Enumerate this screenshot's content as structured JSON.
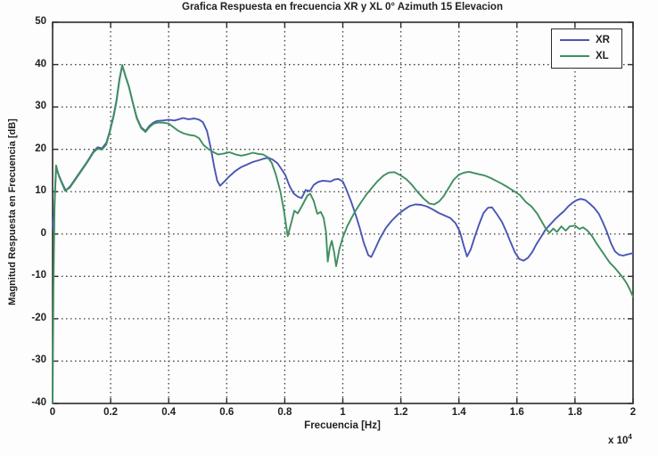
{
  "chart_data": {
    "type": "line",
    "title": "Grafica Respuesta en frecuencia XR y XL 0° Azimuth 15 Elevacion",
    "xlabel": "Frecuencia [Hz]",
    "ylabel": "Magnitud Respuesta en Frecuencia [dB]",
    "x_exponent": {
      "base": "x 10",
      "power": "4"
    },
    "xlim": [
      0,
      2
    ],
    "ylim": [
      -40,
      50
    ],
    "x_ticks": [
      0,
      0.2,
      0.4,
      0.6,
      0.8,
      1,
      1.2,
      1.4,
      1.6,
      1.8,
      2
    ],
    "x_tick_labels": [
      "0",
      "0.2",
      "0.4",
      "0.6",
      "0.8",
      "1",
      "1.2",
      "1.4",
      "1.6",
      "1.8",
      "2"
    ],
    "y_ticks": [
      50,
      40,
      30,
      20,
      10,
      0,
      -10,
      -20,
      -30,
      -40
    ],
    "y_tick_labels": [
      "50",
      "40",
      "30",
      "20",
      "10",
      "0",
      "-10",
      "-20",
      "-30",
      "-40"
    ],
    "grid": "dotted",
    "legend_position": "top-right",
    "colors": {
      "axis": "#2a2a2a",
      "grid": "#3a3a3a",
      "background": "#fdfdfd"
    },
    "series": [
      {
        "name": "XR",
        "color": "#4a56b4",
        "points": [
          [
            0,
            1.3
          ],
          [
            0.006,
            6
          ],
          [
            0.012,
            15.5
          ],
          [
            0.022,
            13.8
          ],
          [
            0.032,
            12.2
          ],
          [
            0.045,
            10.3
          ],
          [
            0.06,
            11.2
          ],
          [
            0.08,
            13.2
          ],
          [
            0.1,
            15.2
          ],
          [
            0.12,
            17.2
          ],
          [
            0.14,
            19.4
          ],
          [
            0.155,
            20.5
          ],
          [
            0.17,
            20.2
          ],
          [
            0.185,
            21.5
          ],
          [
            0.195,
            23.8
          ],
          [
            0.21,
            28
          ],
          [
            0.22,
            31.5
          ],
          [
            0.23,
            36.5
          ],
          [
            0.24,
            39.8
          ],
          [
            0.251,
            37.3
          ],
          [
            0.263,
            34.8
          ],
          [
            0.277,
            30.8
          ],
          [
            0.29,
            27.5
          ],
          [
            0.305,
            25.2
          ],
          [
            0.32,
            24.3
          ],
          [
            0.333,
            25.5
          ],
          [
            0.347,
            26.3
          ],
          [
            0.36,
            26.7
          ],
          [
            0.38,
            26.8
          ],
          [
            0.4,
            27
          ],
          [
            0.42,
            26.8
          ],
          [
            0.435,
            27.1
          ],
          [
            0.45,
            27.4
          ],
          [
            0.468,
            27.1
          ],
          [
            0.489,
            27.3
          ],
          [
            0.505,
            27
          ],
          [
            0.518,
            26.4
          ],
          [
            0.532,
            24.3
          ],
          [
            0.545,
            20.3
          ],
          [
            0.557,
            15.8
          ],
          [
            0.567,
            12.6
          ],
          [
            0.577,
            11.4
          ],
          [
            0.592,
            12.4
          ],
          [
            0.61,
            13.7
          ],
          [
            0.63,
            14.9
          ],
          [
            0.65,
            15.8
          ],
          [
            0.67,
            16.4
          ],
          [
            0.69,
            17
          ],
          [
            0.71,
            17.4
          ],
          [
            0.728,
            17.8
          ],
          [
            0.745,
            18
          ],
          [
            0.76,
            17.5
          ],
          [
            0.775,
            16.7
          ],
          [
            0.79,
            15.2
          ],
          [
            0.802,
            13.9
          ],
          [
            0.816,
            11.4
          ],
          [
            0.83,
            9.6
          ],
          [
            0.845,
            8.8
          ],
          [
            0.858,
            8.5
          ],
          [
            0.872,
            10.4
          ],
          [
            0.886,
            10.1
          ],
          [
            0.9,
            11.6
          ],
          [
            0.915,
            12.3
          ],
          [
            0.93,
            12.6
          ],
          [
            0.945,
            12.5
          ],
          [
            0.958,
            12.4
          ],
          [
            0.972,
            12.9
          ],
          [
            0.985,
            13
          ],
          [
            1,
            12.4
          ],
          [
            1.013,
            10.4
          ],
          [
            1.028,
            7.8
          ],
          [
            1.043,
            4.8
          ],
          [
            1.058,
            1.5
          ],
          [
            1.072,
            -2
          ],
          [
            1.088,
            -5
          ],
          [
            1.098,
            -5.4
          ],
          [
            1.112,
            -3.4
          ],
          [
            1.128,
            -1
          ],
          [
            1.148,
            1.4
          ],
          [
            1.168,
            3.1
          ],
          [
            1.19,
            4.6
          ],
          [
            1.21,
            5.7
          ],
          [
            1.23,
            6.6
          ],
          [
            1.25,
            7
          ],
          [
            1.27,
            6.9
          ],
          [
            1.29,
            6.5
          ],
          [
            1.31,
            5.8
          ],
          [
            1.33,
            5
          ],
          [
            1.35,
            4.4
          ],
          [
            1.37,
            3.8
          ],
          [
            1.388,
            2.6
          ],
          [
            1.403,
            0.6
          ],
          [
            1.417,
            -2.8
          ],
          [
            1.428,
            -5.3
          ],
          [
            1.441,
            -3.6
          ],
          [
            1.455,
            -0.6
          ],
          [
            1.47,
            2.4
          ],
          [
            1.485,
            5
          ],
          [
            1.5,
            6.2
          ],
          [
            1.514,
            6.3
          ],
          [
            1.53,
            4.8
          ],
          [
            1.548,
            2.9
          ],
          [
            1.563,
            0.6
          ],
          [
            1.578,
            -1.9
          ],
          [
            1.593,
            -4.3
          ],
          [
            1.608,
            -5.9
          ],
          [
            1.623,
            -6.3
          ],
          [
            1.638,
            -5.6
          ],
          [
            1.653,
            -4.2
          ],
          [
            1.668,
            -2.3
          ],
          [
            1.683,
            -0.7
          ],
          [
            1.698,
            1
          ],
          [
            1.714,
            2.2
          ],
          [
            1.73,
            3.4
          ],
          [
            1.745,
            4.4
          ],
          [
            1.762,
            5.4
          ],
          [
            1.778,
            6.6
          ],
          [
            1.792,
            7.4
          ],
          [
            1.806,
            8
          ],
          [
            1.82,
            8.3
          ],
          [
            1.836,
            8
          ],
          [
            1.85,
            7.2
          ],
          [
            1.866,
            6.2
          ],
          [
            1.882,
            4.8
          ],
          [
            1.896,
            2.8
          ],
          [
            1.91,
            0.5
          ],
          [
            1.924,
            -2.2
          ],
          [
            1.938,
            -4.1
          ],
          [
            1.952,
            -4.9
          ],
          [
            1.966,
            -5.1
          ],
          [
            1.982,
            -4.8
          ],
          [
            2,
            -4.5
          ]
        ]
      },
      {
        "name": "XL",
        "color": "#3f8f5f",
        "points": [
          [
            0,
            -40
          ],
          [
            0.003,
            -12
          ],
          [
            0.007,
            8
          ],
          [
            0.012,
            16.2
          ],
          [
            0.022,
            13.6
          ],
          [
            0.032,
            12
          ],
          [
            0.043,
            10.2
          ],
          [
            0.06,
            11
          ],
          [
            0.08,
            13
          ],
          [
            0.1,
            15
          ],
          [
            0.12,
            17
          ],
          [
            0.14,
            19.2
          ],
          [
            0.155,
            20.2
          ],
          [
            0.17,
            19.9
          ],
          [
            0.185,
            21.1
          ],
          [
            0.195,
            23.6
          ],
          [
            0.21,
            27.7
          ],
          [
            0.22,
            31.2
          ],
          [
            0.23,
            36.2
          ],
          [
            0.24,
            39.9
          ],
          [
            0.251,
            37.3
          ],
          [
            0.263,
            34.8
          ],
          [
            0.277,
            30.8
          ],
          [
            0.29,
            27.3
          ],
          [
            0.305,
            25
          ],
          [
            0.32,
            24.1
          ],
          [
            0.333,
            25.2
          ],
          [
            0.347,
            26
          ],
          [
            0.36,
            26.3
          ],
          [
            0.38,
            26.3
          ],
          [
            0.4,
            26.1
          ],
          [
            0.415,
            25.3
          ],
          [
            0.43,
            24.5
          ],
          [
            0.45,
            23.8
          ],
          [
            0.47,
            23.4
          ],
          [
            0.49,
            23.2
          ],
          [
            0.505,
            22.6
          ],
          [
            0.52,
            21
          ],
          [
            0.54,
            19.9
          ],
          [
            0.555,
            19.3
          ],
          [
            0.57,
            18.8
          ],
          [
            0.59,
            19
          ],
          [
            0.61,
            19.3
          ],
          [
            0.63,
            18.8
          ],
          [
            0.65,
            18.5
          ],
          [
            0.67,
            18.8
          ],
          [
            0.69,
            19.2
          ],
          [
            0.71,
            18.9
          ],
          [
            0.725,
            18.8
          ],
          [
            0.74,
            18.2
          ],
          [
            0.755,
            16.8
          ],
          [
            0.77,
            13.9
          ],
          [
            0.785,
            10
          ],
          [
            0.798,
            5.2
          ],
          [
            0.81,
            -0.5
          ],
          [
            0.822,
            2.6
          ],
          [
            0.833,
            5.5
          ],
          [
            0.845,
            4.9
          ],
          [
            0.862,
            7
          ],
          [
            0.878,
            9.1
          ],
          [
            0.888,
            9.5
          ],
          [
            0.9,
            7.8
          ],
          [
            0.912,
            4.8
          ],
          [
            0.924,
            5.2
          ],
          [
            0.934,
            3.8
          ],
          [
            0.942,
            0.5
          ],
          [
            0.948,
            -6.5
          ],
          [
            0.955,
            -3.2
          ],
          [
            0.962,
            -1.6
          ],
          [
            0.97,
            -4.2
          ],
          [
            0.977,
            -7.6
          ],
          [
            0.988,
            -3.6
          ],
          [
            1,
            -0.8
          ],
          [
            1.015,
            1.8
          ],
          [
            1.03,
            3.8
          ],
          [
            1.045,
            5.6
          ],
          [
            1.06,
            7.2
          ],
          [
            1.08,
            9.2
          ],
          [
            1.1,
            10.9
          ],
          [
            1.12,
            12.5
          ],
          [
            1.14,
            13.8
          ],
          [
            1.158,
            14.5
          ],
          [
            1.178,
            14.6
          ],
          [
            1.198,
            13.9
          ],
          [
            1.218,
            13
          ],
          [
            1.238,
            11.6
          ],
          [
            1.258,
            9.9
          ],
          [
            1.278,
            8.4
          ],
          [
            1.298,
            7.2
          ],
          [
            1.315,
            7
          ],
          [
            1.332,
            7.7
          ],
          [
            1.348,
            9
          ],
          [
            1.365,
            10.9
          ],
          [
            1.382,
            12.8
          ],
          [
            1.4,
            14
          ],
          [
            1.418,
            14.5
          ],
          [
            1.435,
            14.7
          ],
          [
            1.452,
            14.4
          ],
          [
            1.47,
            14.1
          ],
          [
            1.49,
            13.8
          ],
          [
            1.51,
            13.2
          ],
          [
            1.53,
            12.5
          ],
          [
            1.55,
            11.8
          ],
          [
            1.57,
            11
          ],
          [
            1.59,
            10.1
          ],
          [
            1.61,
            9.2
          ],
          [
            1.63,
            7.6
          ],
          [
            1.65,
            6.5
          ],
          [
            1.67,
            4.8
          ],
          [
            1.685,
            3
          ],
          [
            1.7,
            1.2
          ],
          [
            1.712,
            0.3
          ],
          [
            1.725,
            1.3
          ],
          [
            1.738,
            0.5
          ],
          [
            1.753,
            1.8
          ],
          [
            1.768,
            0.8
          ],
          [
            1.782,
            1.8
          ],
          [
            1.8,
            2
          ],
          [
            1.815,
            1.2
          ],
          [
            1.828,
            1.6
          ],
          [
            1.843,
            0.8
          ],
          [
            1.858,
            -0.4
          ],
          [
            1.874,
            -2.2
          ],
          [
            1.89,
            -3.8
          ],
          [
            1.905,
            -5.3
          ],
          [
            1.92,
            -6.8
          ],
          [
            1.935,
            -7.8
          ],
          [
            1.95,
            -9
          ],
          [
            1.965,
            -10.3
          ],
          [
            1.978,
            -11.6
          ],
          [
            1.99,
            -13.2
          ],
          [
            2,
            -14.8
          ]
        ]
      }
    ]
  }
}
